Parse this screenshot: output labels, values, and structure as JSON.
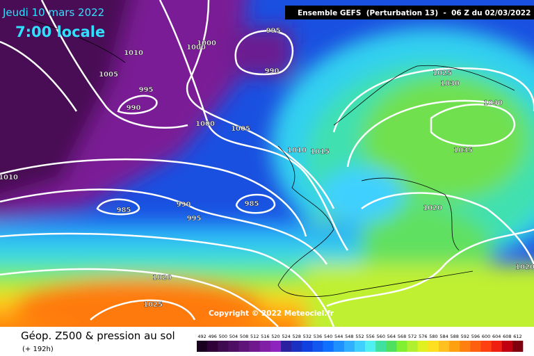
{
  "header": {
    "date": "Jeudi 10 mars 2022",
    "time": "7:00 locale",
    "run": "Ensemble GEFS  (Perturbation 13)  -  06 Z du 02/03/2022"
  },
  "map": {
    "copyright": "Copyright © 2022 Meteociel.fr",
    "isobar_labels": [
      995,
      1000,
      1000,
      1010,
      990,
      1025,
      1005,
      1030,
      995,
      990,
      1040,
      1000,
      1005,
      1010,
      1015,
      1035,
      1010,
      985,
      990,
      985,
      995,
      1020,
      1020,
      1020,
      1025
    ]
  },
  "footer": {
    "title": "Géop. Z500 & pression au sol",
    "lead": "(+ 192h)"
  },
  "colorbar": {
    "labels": [
      492,
      496,
      500,
      504,
      508,
      512,
      516,
      520,
      524,
      528,
      532,
      536,
      540,
      544,
      548,
      552,
      556,
      560,
      564,
      568,
      572,
      576,
      580,
      584,
      588,
      592,
      596,
      600,
      604,
      608,
      612
    ],
    "colors": [
      "#1a0020",
      "#300038",
      "#3f0a4f",
      "#4e0e63",
      "#5f1479",
      "#70198f",
      "#801fa6",
      "#8e23bd",
      "#2a20a0",
      "#1a30c0",
      "#1040e0",
      "#1058f0",
      "#1070ff",
      "#2090ff",
      "#30b0ff",
      "#40d0ff",
      "#50f0f0",
      "#40e0a0",
      "#50e060",
      "#80f030",
      "#b0f030",
      "#e0f020",
      "#ffe020",
      "#ffc020",
      "#ffa010",
      "#ff8010",
      "#ff6010",
      "#ff4010",
      "#f02010",
      "#c00010",
      "#800010"
    ]
  }
}
